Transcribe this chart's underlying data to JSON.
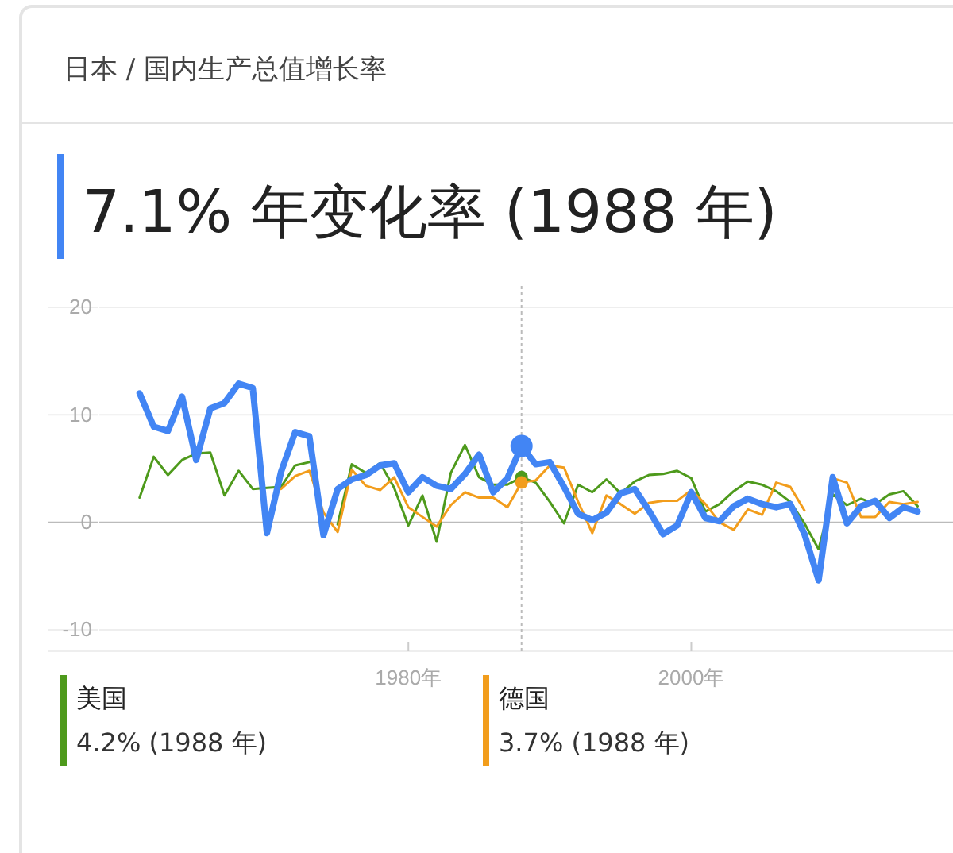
{
  "chart_data": {
    "type": "line",
    "title": "日本 / 国内生产总值增长率",
    "subtitle": "7.1% 年变化率 (1988 年)",
    "x": [
      1961,
      1962,
      1963,
      1964,
      1965,
      1966,
      1967,
      1968,
      1969,
      1970,
      1971,
      1972,
      1973,
      1974,
      1975,
      1976,
      1977,
      1978,
      1979,
      1980,
      1981,
      1982,
      1983,
      1984,
      1985,
      1986,
      1987,
      1988,
      1989,
      1990,
      1991,
      1992,
      1993,
      1994,
      1995,
      1996,
      1997,
      1998,
      1999,
      2000,
      2001,
      2002,
      2003,
      2004,
      2005,
      2006,
      2007,
      2008,
      2009,
      2010,
      2011,
      2012,
      2013,
      2014,
      2015,
      2016
    ],
    "series": [
      {
        "name": "美国",
        "color": "#4e9a1c",
        "values": [
          2.3,
          6.1,
          4.4,
          5.8,
          6.4,
          6.5,
          2.5,
          4.8,
          3.1,
          3.2,
          3.3,
          5.3,
          5.6,
          null,
          -0.2,
          5.4,
          4.6,
          5.5,
          3.2,
          -0.3,
          2.5,
          -1.8,
          4.6,
          7.2,
          4.2,
          3.5,
          3.5,
          4.2,
          3.7,
          1.9,
          -0.1,
          3.5,
          2.8,
          4.0,
          2.7,
          3.8,
          4.4,
          4.5,
          4.8,
          4.1,
          1.0,
          1.7,
          2.9,
          3.8,
          3.5,
          2.9,
          1.9,
          -0.1,
          -2.5,
          2.6,
          1.6,
          2.2,
          1.7,
          2.6,
          2.9,
          1.5
        ]
      },
      {
        "name": "德国",
        "color": "#f29d1c",
        "values": [
          null,
          null,
          null,
          null,
          null,
          null,
          null,
          null,
          null,
          null,
          3.1,
          4.3,
          4.8,
          0.9,
          -0.9,
          4.9,
          3.4,
          3.0,
          4.2,
          1.4,
          0.5,
          -0.4,
          1.6,
          2.8,
          2.3,
          2.3,
          1.4,
          3.7,
          3.9,
          5.3,
          5.1,
          1.9,
          -1.0,
          2.5,
          1.7,
          0.8,
          1.8,
          2.0,
          2.0,
          3.0,
          1.7,
          0.0,
          -0.7,
          1.2,
          0.7,
          3.7,
          3.3,
          1.1,
          null,
          4.1,
          3.7,
          0.5,
          0.5,
          1.9,
          1.7,
          1.9
        ]
      },
      {
        "color": "#4285f4",
        "values": [
          12.0,
          8.9,
          8.5,
          11.7,
          5.8,
          10.6,
          11.1,
          12.9,
          12.5,
          -1.0,
          4.7,
          8.4,
          8.0,
          -1.2,
          3.1,
          4.0,
          4.4,
          5.3,
          5.5,
          2.8,
          4.2,
          3.4,
          3.1,
          4.5,
          6.3,
          2.8,
          4.1,
          7.1,
          5.4,
          5.6,
          3.3,
          0.8,
          0.2,
          0.9,
          2.7,
          3.1,
          1.1,
          -1.1,
          -0.3,
          2.8,
          0.4,
          0.1,
          1.5,
          2.2,
          1.7,
          1.4,
          1.7,
          -1.1,
          -5.4,
          4.2,
          -0.1,
          1.5,
          2.0,
          0.4,
          1.4,
          1.0
        ]
      }
    ],
    "xlim": [
      1954.5,
      2018.5
    ],
    "xticks": [
      {
        "value": 1980,
        "label": "1980年"
      },
      {
        "value": 2000,
        "label": "2000年"
      }
    ],
    "ylim": [
      -12,
      22
    ],
    "yticks": [
      -10,
      0,
      10,
      20
    ],
    "grid": "y",
    "legend": "bottom",
    "line_style": "solid",
    "marker": "none",
    "ref_lines": [
      {
        "axis": "x",
        "value": 1988,
        "line_style": "dotted",
        "color": "#bbbbbb"
      }
    ],
    "annotations": [
      "4.2% (1988 年)",
      "3.7% (1988 年)"
    ]
  }
}
